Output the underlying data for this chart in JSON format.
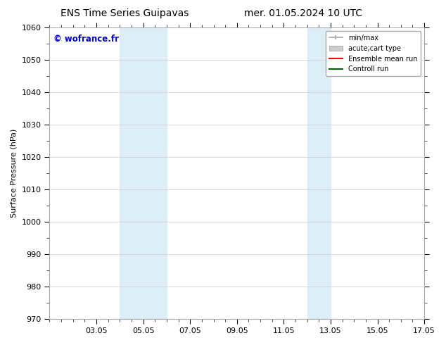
{
  "title_left": "ENS Time Series Guipavas",
  "title_right": "mer. 01.05.2024 10 UTC",
  "ylabel": "Surface Pressure (hPa)",
  "ylim": [
    970,
    1060
  ],
  "yticks": [
    970,
    980,
    990,
    1000,
    1010,
    1020,
    1030,
    1040,
    1050,
    1060
  ],
  "xlim": [
    1,
    17
  ],
  "xtick_labels": [
    "03.05",
    "05.05",
    "07.05",
    "09.05",
    "11.05",
    "13.05",
    "15.05",
    "17.05"
  ],
  "xtick_positions": [
    3,
    5,
    7,
    9,
    11,
    13,
    15,
    17
  ],
  "shaded_bands": [
    {
      "x_start": 4.0,
      "x_end": 6.0
    },
    {
      "x_start": 12.0,
      "x_end": 13.0
    }
  ],
  "shaded_color": "#ddeef8",
  "background_color": "#ffffff",
  "watermark_text": "© wofrance.fr",
  "watermark_color": "#0000cc",
  "legend_items": [
    {
      "label": "min/max",
      "color": "#aaaaaa",
      "linewidth": 1.2
    },
    {
      "label": "acute;cart type",
      "color": "#cccccc",
      "linewidth": 7
    },
    {
      "label": "Ensemble mean run",
      "color": "#ff0000",
      "linewidth": 1.5
    },
    {
      "label": "Controll run",
      "color": "#006600",
      "linewidth": 1.5
    }
  ],
  "grid_color": "#cccccc",
  "spine_color": "#aaaaaa",
  "title_fontsize": 10,
  "label_fontsize": 8,
  "tick_fontsize": 8,
  "legend_fontsize": 7
}
